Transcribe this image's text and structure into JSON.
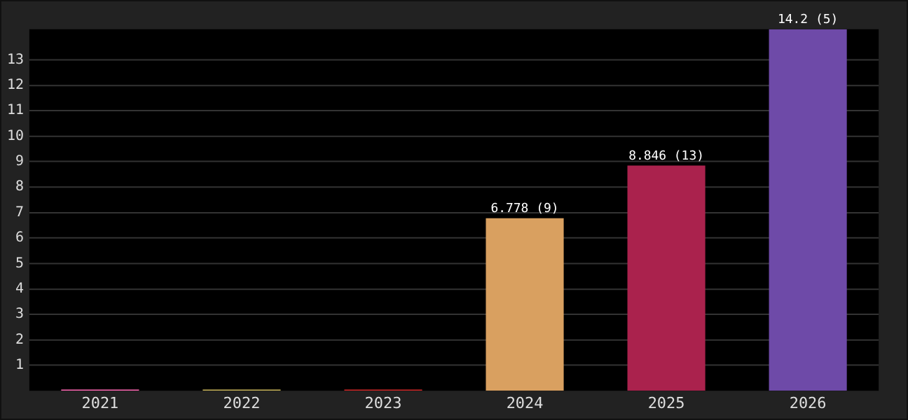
{
  "chart_data": {
    "type": "bar",
    "categories": [
      "2021",
      "2022",
      "2023",
      "2024",
      "2025",
      "2026"
    ],
    "values": [
      0.05,
      0.05,
      0.05,
      6.778,
      8.846,
      14.2
    ],
    "colors": [
      "#ff69b4",
      "#c8b45a",
      "#d02828",
      "#d9a060",
      "#aa224d",
      "#6e4aa8"
    ],
    "value_labels": [
      null,
      null,
      null,
      "6.778 (9)",
      "8.846 (13)",
      "14.2 (5)"
    ],
    "ylim": [
      0,
      14.2
    ],
    "yticks": [
      1,
      2,
      3,
      4,
      5,
      6,
      7,
      8,
      9,
      10,
      11,
      12,
      13
    ],
    "grid": "y",
    "legend": false
  }
}
